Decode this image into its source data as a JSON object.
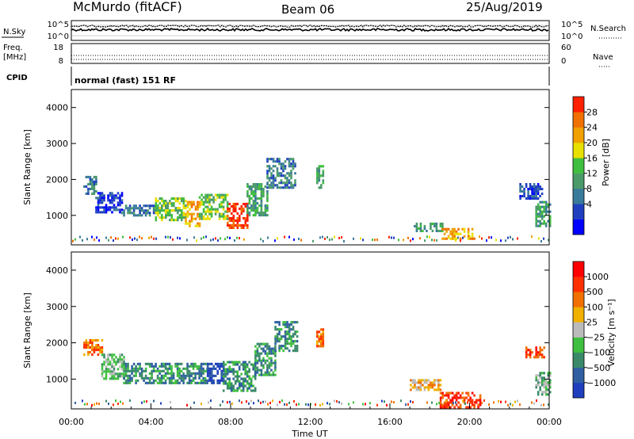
{
  "header": {
    "station": "McMurdo (fitACF)",
    "beam": "Beam 06",
    "date": "25/Aug/2019"
  },
  "strips": {
    "nsky_label": "N.Sky",
    "nsky_ticks": [
      "10^5",
      "10^0"
    ],
    "nsearch_label": "N.Search",
    "nsearch_ticks": [
      "10^5",
      "10^0"
    ],
    "freq_label": "Freq.",
    "freq_unit": "[MHz]",
    "freq_ticks": [
      "18",
      "8"
    ],
    "nave_label": "Nave",
    "nave_ticks": [
      "60",
      "0"
    ],
    "cpid_label": "CPID",
    "cpid_text": "normal (fast) 151 RF"
  },
  "chart_data": [
    {
      "type": "heatmap",
      "name": "power",
      "ylabel": "Slant Range [km]",
      "yticks": [
        "4000",
        "3000",
        "2000",
        "1000"
      ],
      "ylim": [
        180,
        4500
      ],
      "xlim": [
        0,
        24
      ],
      "colorbar_label": "Power [dB]",
      "colorbar_ticks": [
        "28",
        "24",
        "20",
        "16",
        "12",
        "8",
        "4"
      ],
      "colorbar_colors": [
        "#0000ff",
        "#1f3fbf",
        "#3a7a9a",
        "#4a9a6a",
        "#3fbf3f",
        "#e8e000",
        "#f0a000",
        "#f07000",
        "#ff2000"
      ],
      "echoes": [
        {
          "t0": 0.6,
          "t1": 1.2,
          "r0": 1600,
          "r1": 2100,
          "level": 2
        },
        {
          "t0": 1.2,
          "t1": 2.5,
          "r0": 1100,
          "r1": 1650,
          "level": 1
        },
        {
          "t0": 2.5,
          "t1": 4.2,
          "r0": 1000,
          "r1": 1300,
          "level": 2
        },
        {
          "t0": 4.2,
          "t1": 5.7,
          "r0": 900,
          "r1": 1500,
          "level": 4
        },
        {
          "t0": 5.7,
          "t1": 6.4,
          "r0": 700,
          "r1": 1400,
          "level": 6
        },
        {
          "t0": 6.4,
          "t1": 7.8,
          "r0": 900,
          "r1": 1600,
          "level": 4
        },
        {
          "t0": 7.8,
          "t1": 8.8,
          "r0": 650,
          "r1": 1350,
          "level": 8
        },
        {
          "t0": 8.8,
          "t1": 9.8,
          "r0": 1000,
          "r1": 1900,
          "level": 3
        },
        {
          "t0": 9.8,
          "t1": 11.2,
          "r0": 1800,
          "r1": 2600,
          "level": 2
        },
        {
          "t0": 12.3,
          "t1": 12.6,
          "r0": 1800,
          "r1": 2400,
          "level": 3
        },
        {
          "t0": 17.2,
          "t1": 18.6,
          "r0": 600,
          "r1": 800,
          "level": 3
        },
        {
          "t0": 18.6,
          "t1": 20.2,
          "r0": 350,
          "r1": 650,
          "level": 6
        },
        {
          "t0": 22.5,
          "t1": 23.6,
          "r0": 1500,
          "r1": 1900,
          "level": 1
        },
        {
          "t0": 23.3,
          "t1": 24.0,
          "r0": 700,
          "r1": 1400,
          "level": 3
        }
      ]
    },
    {
      "type": "heatmap",
      "name": "velocity",
      "ylabel": "Slant Range [km]",
      "yticks": [
        "4000",
        "3000",
        "2000",
        "1000"
      ],
      "ylim": [
        180,
        4500
      ],
      "xlim": [
        0,
        24
      ],
      "xticks": [
        "00:00",
        "04:00",
        "08:00",
        "12:00",
        "16:00",
        "20:00",
        "00:00"
      ],
      "xlabel": "Time UT",
      "colorbar_label": "Velocity [m s⁻¹]",
      "colorbar_ticks": [
        "1000",
        "500",
        "100",
        "25",
        "−25",
        "−100",
        "−500",
        "−1000"
      ],
      "colorbar_colors": [
        "#1f3fbf",
        "#2f5fa0",
        "#3a8a6a",
        "#3fbf3f",
        "#bbbbbb",
        "#f0b000",
        "#f07000",
        "#ff3000",
        "#ff0000"
      ],
      "echoes": [
        {
          "t0": 0.6,
          "t1": 1.5,
          "r0": 1700,
          "r1": 2100,
          "level": 6
        },
        {
          "t0": 1.5,
          "t1": 2.6,
          "r0": 1000,
          "r1": 1700,
          "level": 3
        },
        {
          "t0": 2.6,
          "t1": 6.8,
          "r0": 900,
          "r1": 1450,
          "level": 2
        },
        {
          "t0": 6.8,
          "t1": 7.6,
          "r0": 900,
          "r1": 1450,
          "level": 0
        },
        {
          "t0": 7.6,
          "t1": 9.2,
          "r0": 700,
          "r1": 1500,
          "level": 2
        },
        {
          "t0": 9.2,
          "t1": 10.2,
          "r0": 1100,
          "r1": 2000,
          "level": 2
        },
        {
          "t0": 10.2,
          "t1": 11.3,
          "r0": 1800,
          "r1": 2600,
          "level": 2
        },
        {
          "t0": 12.3,
          "t1": 12.6,
          "r0": 1900,
          "r1": 2400,
          "level": 6
        },
        {
          "t0": 17.0,
          "t1": 18.5,
          "r0": 700,
          "r1": 1000,
          "level": 5
        },
        {
          "t0": 18.5,
          "t1": 20.5,
          "r0": 250,
          "r1": 650,
          "level": 7
        },
        {
          "t0": 22.8,
          "t1": 23.7,
          "r0": 1600,
          "r1": 1900,
          "level": 7
        },
        {
          "t0": 23.3,
          "t1": 24.0,
          "r0": 600,
          "r1": 1200,
          "level": 3
        }
      ]
    }
  ]
}
